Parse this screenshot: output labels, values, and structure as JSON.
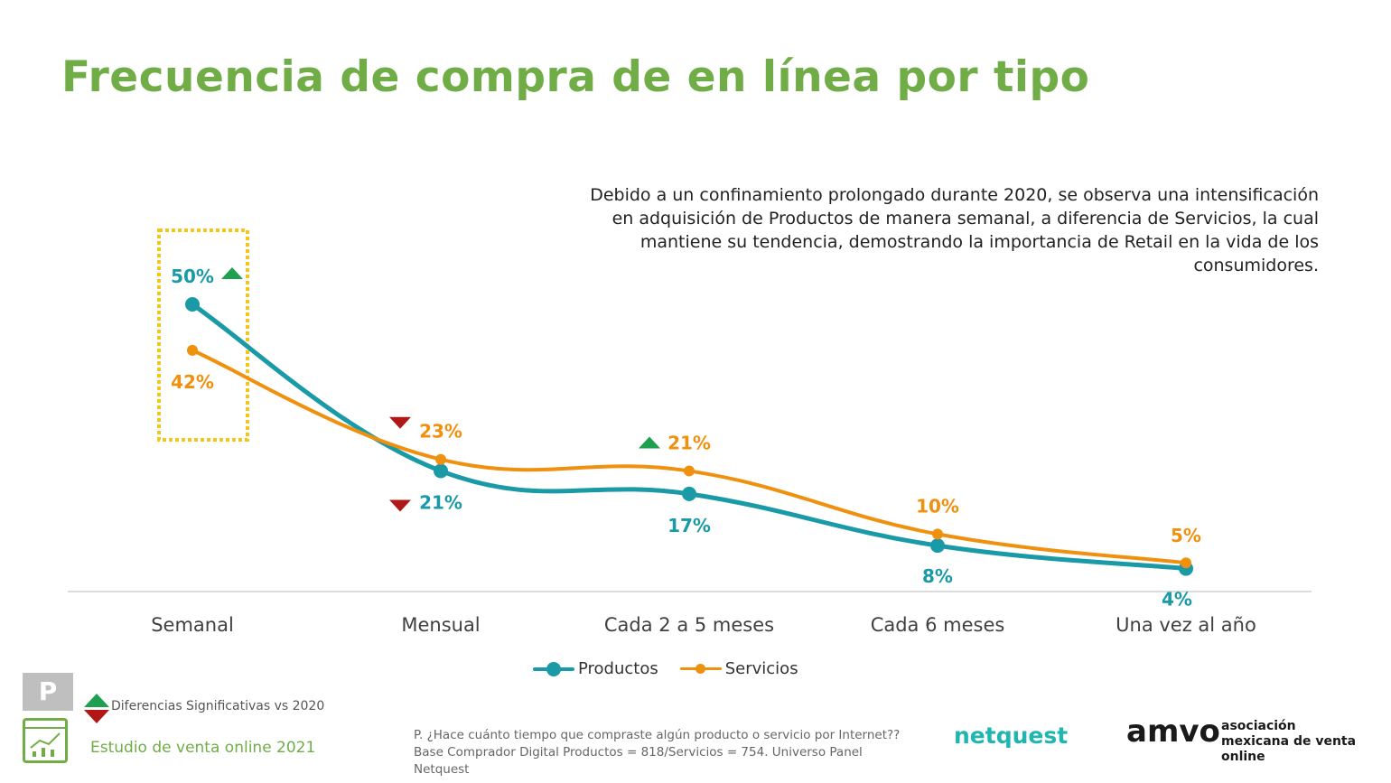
{
  "title": "Frecuencia de compra de en línea por tipo",
  "note": "Debido a un confinamiento prolongado durante 2020, se observa una intensificación en adquisición  de Productos de manera semanal, a diferencia de Servicios, la cual mantiene su tendencia, demostrando la importancia de Retail en la vida de los consumidores.",
  "chart_data": {
    "type": "line",
    "categories": [
      "Semanal",
      "Mensual",
      "Cada 2 a 5 meses",
      "Cada 6 meses",
      "Una vez al año"
    ],
    "series": [
      {
        "name": "Productos",
        "values": [
          50,
          21,
          17,
          8,
          4
        ],
        "labels": [
          "50%",
          "21%",
          "17%",
          "8%",
          "4%"
        ],
        "color": "#1a9aa6",
        "significance": [
          "up",
          "down",
          null,
          null,
          null
        ]
      },
      {
        "name": "Servicios",
        "values": [
          42,
          23,
          21,
          10,
          5
        ],
        "labels": [
          "42%",
          "23%",
          "21%",
          "10%",
          "5%"
        ],
        "color": "#f0900f",
        "significance": [
          null,
          "down",
          "up",
          null,
          null
        ]
      }
    ],
    "ylim": [
      0,
      50
    ],
    "grid": false,
    "legend": "bottom",
    "highlight_category": "Semanal",
    "highlight_color": "#f5c518",
    "up_color": "#1fa050",
    "down_color": "#b01818"
  },
  "legend_note": "Diferencias Significativas vs 2020",
  "p_badge": "P",
  "study": "Estudio de venta online 2021",
  "footnote": "P. ¿Hace cuánto tiempo que compraste algún producto o servicio por Internet?? Base Comprador Digital Productos = 818/Servicios = 754. Universo Panel Netquest",
  "logos": {
    "netquest": "netquest",
    "amvo": "amvo",
    "amvo_sub": "asociación mexicana de venta online"
  }
}
